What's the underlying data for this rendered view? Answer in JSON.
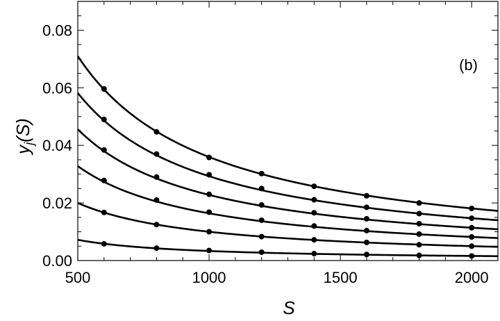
{
  "chart_data": {
    "type": "scatter",
    "panel_label": "(b)",
    "xlabel": "S",
    "ylabel_main": "y",
    "ylabel_sub": "j",
    "ylabel_tail": "(S)",
    "xlim": [
      500,
      2100
    ],
    "ylim": [
      0,
      0.09
    ],
    "x_ticks": [
      500,
      1000,
      1500,
      2000
    ],
    "x_tick_labels": [
      "500",
      "1000",
      "1500",
      "2000"
    ],
    "y_ticks": [
      0,
      0.02,
      0.04,
      0.06,
      0.08
    ],
    "y_tick_labels": [
      "0.00",
      "0.02",
      "0.04",
      "0.06",
      "0.08"
    ],
    "grid": false,
    "marker_x": [
      600,
      800,
      1000,
      1200,
      1400,
      1600,
      1800,
      2000
    ],
    "series": [
      {
        "values": [
          0.0596,
          0.0447,
          0.0358,
          0.0302,
          0.0258,
          0.0225,
          0.02,
          0.0181
        ],
        "curve_start": 0.071
      },
      {
        "values": [
          0.049,
          0.037,
          0.0298,
          0.025,
          0.0211,
          0.0185,
          0.0163,
          0.0147
        ],
        "curve_start": 0.0582
      },
      {
        "values": [
          0.0384,
          0.029,
          0.023,
          0.0193,
          0.0166,
          0.0145,
          0.0128,
          0.0114
        ],
        "curve_start": 0.0456
      },
      {
        "values": [
          0.0278,
          0.021,
          0.0168,
          0.014,
          0.012,
          0.0104,
          0.0092,
          0.0082
        ],
        "curve_start": 0.0328
      },
      {
        "values": [
          0.0167,
          0.0125,
          0.01,
          0.0083,
          0.0072,
          0.0063,
          0.0055,
          0.005
        ],
        "curve_start": 0.02
      },
      {
        "values": [
          0.0058,
          0.0043,
          0.0035,
          0.0029,
          0.0024,
          0.0021,
          0.0018,
          0.0016
        ],
        "curve_start": 0.0072
      }
    ]
  }
}
